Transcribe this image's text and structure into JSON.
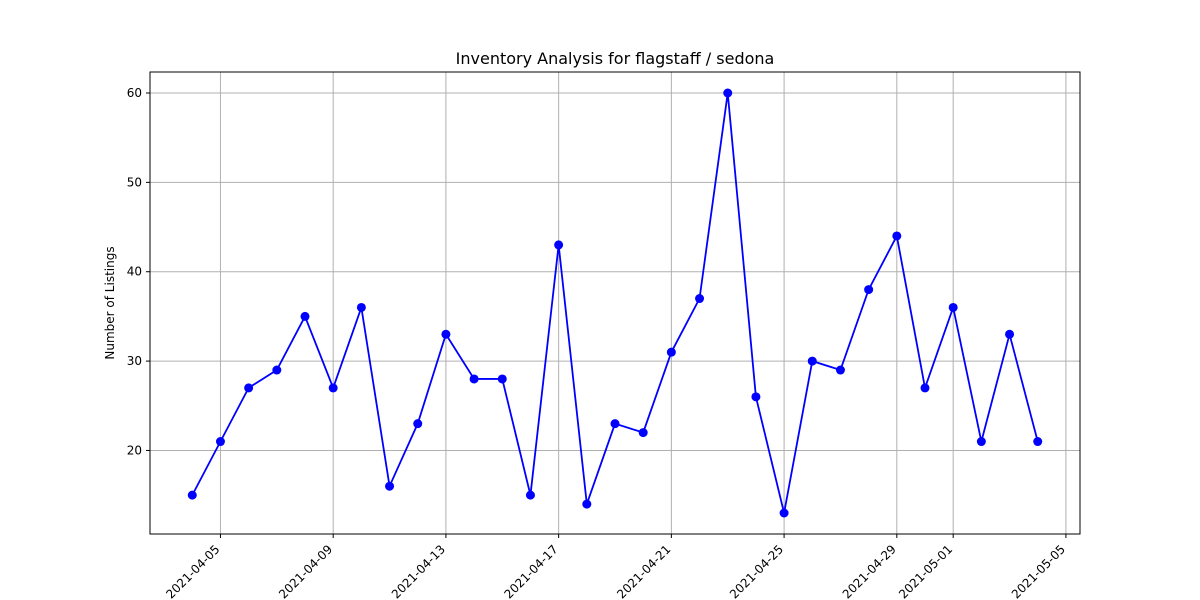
{
  "chart_data": {
    "type": "line",
    "title": "Inventory Analysis for flagstaff / sedona",
    "xlabel": "",
    "ylabel": "Number of Listings",
    "x_ticks": [
      "2021-04-05",
      "2021-04-09",
      "2021-04-13",
      "2021-04-17",
      "2021-04-21",
      "2021-04-25",
      "2021-04-29",
      "2021-05-01",
      "2021-05-05"
    ],
    "y_ticks": [
      20,
      30,
      40,
      50,
      60
    ],
    "xlim": [
      "2021-04-02",
      "2021-05-05"
    ],
    "ylim": [
      10.65,
      62.35
    ],
    "grid": true,
    "line_color": "#0000ff",
    "marker": "circle",
    "x": [
      "2021-04-04",
      "2021-04-05",
      "2021-04-06",
      "2021-04-07",
      "2021-04-08",
      "2021-04-09",
      "2021-04-10",
      "2021-04-11",
      "2021-04-12",
      "2021-04-13",
      "2021-04-14",
      "2021-04-15",
      "2021-04-16",
      "2021-04-17",
      "2021-04-18",
      "2021-04-19",
      "2021-04-20",
      "2021-04-21",
      "2021-04-22",
      "2021-04-23",
      "2021-04-24",
      "2021-04-25",
      "2021-04-26",
      "2021-04-27",
      "2021-04-28",
      "2021-04-29",
      "2021-04-30",
      "2021-05-01",
      "2021-05-02",
      "2021-05-03",
      "2021-05-04"
    ],
    "values": [
      15,
      21,
      27,
      29,
      35,
      27,
      36,
      16,
      23,
      33,
      28,
      28,
      15,
      43,
      14,
      23,
      22,
      31,
      37,
      60,
      26,
      13,
      30,
      29,
      38,
      44,
      27,
      36,
      21,
      33,
      21
    ]
  }
}
